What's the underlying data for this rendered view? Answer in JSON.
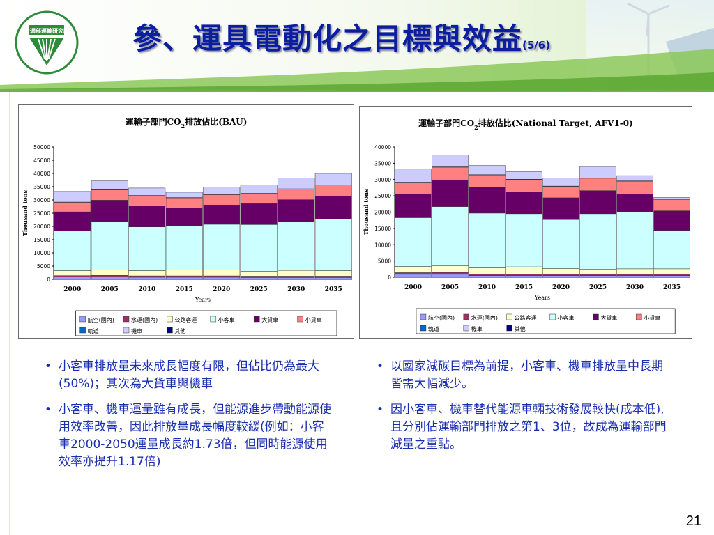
{
  "slide": {
    "title": "參、運具電動化之目標與效益",
    "title_suffix": "(5/6)",
    "logo_text": "交通部運輸研究所",
    "page_number": "21"
  },
  "colors": {
    "title": "#0b1f9e",
    "text": "#1a2fb0",
    "bg_top": "#eaf4dc",
    "bg_green": "#7cbf4a",
    "logo_green": "#2e8b3a"
  },
  "legend": [
    {
      "name": "航空(國內)",
      "color": "#9999ff"
    },
    {
      "name": "水運(國內)",
      "color": "#993366"
    },
    {
      "name": "公路客運",
      "color": "#ffffcc"
    },
    {
      "name": "小客車",
      "color": "#ccffff"
    },
    {
      "name": "大貨車",
      "color": "#660066"
    },
    {
      "name": "小貨車",
      "color": "#ff8080"
    },
    {
      "name": "軌道",
      "color": "#0066cc"
    },
    {
      "name": "機車",
      "color": "#ccccff"
    },
    {
      "name": "其他",
      "color": "#000080"
    }
  ],
  "chart_data": [
    {
      "type": "bar",
      "stacked": true,
      "title_prefix": "運輸子部門CO",
      "title_sub": "2",
      "title_suffix": "排放佔比(BAU)",
      "xlabel": "Years",
      "ylabel": "Thousand tons",
      "ylim": [
        0,
        50000
      ],
      "yticks": [
        "0",
        "5000",
        "10000",
        "15000",
        "20000",
        "25000",
        "30000",
        "35000",
        "40000",
        "45000",
        "50000"
      ],
      "categories": [
        "2000",
        "2005",
        "2010",
        "2015",
        "2020",
        "2025",
        "2030",
        "2035"
      ],
      "series": [
        {
          "name": "航空(國內)",
          "values": [
            900,
            900,
            800,
            800,
            800,
            700,
            700,
            700
          ]
        },
        {
          "name": "水運(國內)",
          "values": [
            500,
            600,
            500,
            500,
            500,
            500,
            500,
            500
          ]
        },
        {
          "name": "公路客運",
          "values": [
            1900,
            2000,
            2000,
            2200,
            2300,
            1800,
            2200,
            2100
          ]
        },
        {
          "name": "小客車",
          "values": [
            15000,
            18200,
            16500,
            16700,
            17200,
            17700,
            18300,
            19500
          ]
        },
        {
          "name": "大貨車",
          "values": [
            7200,
            8200,
            8000,
            6700,
            7300,
            7900,
            8400,
            8600
          ]
        },
        {
          "name": "小貨車",
          "values": [
            3600,
            3900,
            3800,
            3900,
            3900,
            3800,
            4000,
            4200
          ]
        },
        {
          "name": "軌道",
          "values": [
            100,
            100,
            100,
            100,
            100,
            100,
            100,
            100
          ]
        },
        {
          "name": "機車",
          "values": [
            4000,
            3300,
            2800,
            2000,
            2800,
            3200,
            4100,
            4300
          ]
        },
        {
          "name": "其他",
          "values": [
            0,
            0,
            0,
            0,
            0,
            0,
            0,
            0
          ]
        }
      ]
    },
    {
      "type": "bar",
      "stacked": true,
      "title_prefix": "運輸子部門CO",
      "title_sub": "2",
      "title_suffix": "排放佔比(National Target, AFV1-0)",
      "xlabel": "Years",
      "ylabel": "Thousand tons",
      "ylim": [
        0,
        40000
      ],
      "yticks": [
        "0",
        "5000",
        "10000",
        "15000",
        "20000",
        "25000",
        "30000",
        "35000",
        "40000"
      ],
      "categories": [
        "2000",
        "2005",
        "2010",
        "2015",
        "2020",
        "2025",
        "2030",
        "2035"
      ],
      "series": [
        {
          "name": "航空(國內)",
          "values": [
            900,
            900,
            500,
            500,
            500,
            500,
            500,
            500
          ]
        },
        {
          "name": "水運(國內)",
          "values": [
            500,
            600,
            400,
            500,
            400,
            400,
            400,
            400
          ]
        },
        {
          "name": "公路客運",
          "values": [
            1900,
            2000,
            2000,
            2200,
            1800,
            1600,
            1700,
            1700
          ]
        },
        {
          "name": "小客車",
          "values": [
            15000,
            18200,
            16800,
            16300,
            15000,
            17000,
            17400,
            11800
          ]
        },
        {
          "name": "大貨車",
          "values": [
            7200,
            8200,
            8000,
            6700,
            6700,
            7100,
            5600,
            6000
          ]
        },
        {
          "name": "小貨車",
          "values": [
            3600,
            3900,
            3700,
            3800,
            3500,
            3800,
            3900,
            3500
          ]
        },
        {
          "name": "軌道",
          "values": [
            100,
            100,
            100,
            100,
            100,
            100,
            100,
            100
          ]
        },
        {
          "name": "機車",
          "values": [
            4000,
            3600,
            2800,
            2300,
            2500,
            3500,
            1600,
            500
          ]
        },
        {
          "name": "其他",
          "values": [
            0,
            0,
            0,
            0,
            0,
            0,
            0,
            0
          ]
        }
      ]
    }
  ],
  "bullets_left": [
    "小客車排放量未來成長幅度有限，但佔比仍為最大(50%)；其次為大貨車與機車",
    "小客車、機車運量雖有成長，但能源進步帶動能源使用效率改善，因此排放量成長幅度較緩(例如：小客車2000-2050運量成長約1.73倍，但同時能源使用效率亦提升1.17倍)"
  ],
  "bullets_right": [
    "以國家減碳目標為前提，小客車、機車排放量中長期皆需大幅減少。",
    "因小客車、機車替代能源車輛技術發展較快(成本低),且分別佔運輸部門排放之第1、3位，故成為運輸部門減量之重點。"
  ]
}
